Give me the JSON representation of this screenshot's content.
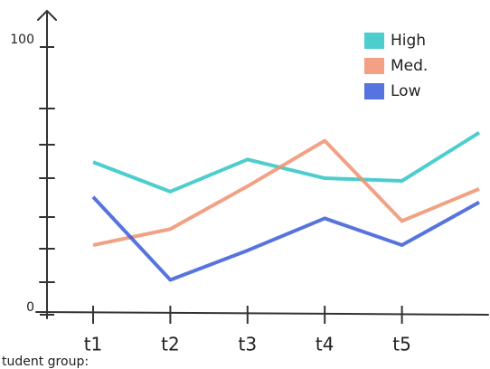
{
  "chart_data": {
    "type": "line",
    "x_label": "tudent group:",
    "categories": [
      "t1",
      "t2",
      "t3",
      "t4",
      "t5",
      null
    ],
    "series": [
      {
        "name": "High",
        "color": "#2ec4c4",
        "values": [
          57,
          46,
          58,
          51,
          50,
          68
        ]
      },
      {
        "name": "Med.",
        "color": "#f0906e",
        "values": [
          26,
          32,
          48,
          65,
          35,
          47
        ]
      },
      {
        "name": "Low",
        "color": "#3a5ad8",
        "values": [
          44,
          13,
          24,
          36,
          26,
          42
        ]
      }
    ],
    "ylim": [
      0,
      100
    ],
    "yticks": [
      0,
      100
    ]
  }
}
